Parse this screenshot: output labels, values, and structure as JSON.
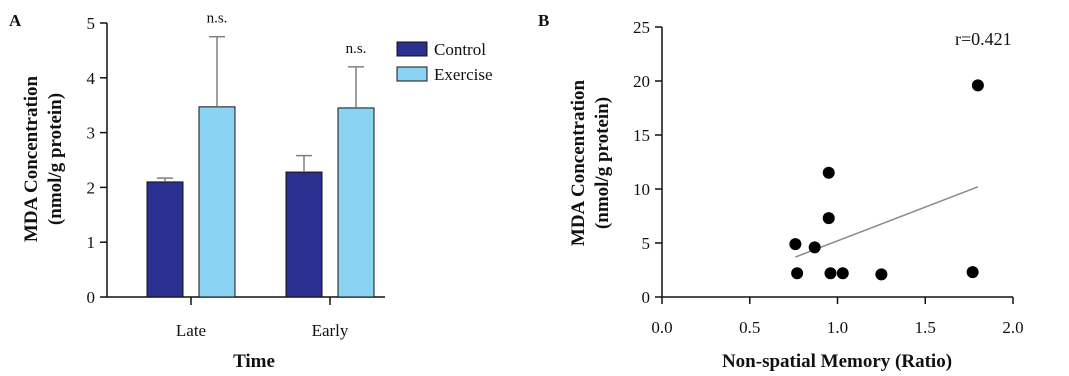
{
  "chart_data": [
    {
      "panel": "A",
      "type": "bar",
      "xlabel": "Time",
      "ylabel": "MDA Concentration",
      "ylabel2": "(nmol/g protein)",
      "categories": [
        "Late",
        "Early"
      ],
      "ylim": [
        0,
        5
      ],
      "yticks": [
        "0",
        "1",
        "2",
        "3",
        "4",
        "5"
      ],
      "series": [
        {
          "name": "Control",
          "color": "#2b2f8f",
          "values": [
            2.1,
            2.28
          ],
          "errors": [
            0.07,
            0.3
          ]
        },
        {
          "name": "Exercise",
          "color": "#8ad3f2",
          "values": [
            3.47,
            3.45
          ],
          "errors": [
            1.28,
            0.75
          ]
        }
      ],
      "annotations": [
        "n.s.",
        "n.s."
      ],
      "legend": "top-right"
    },
    {
      "panel": "B",
      "type": "scatter",
      "xlabel": "Non-spatial Memory (Ratio)",
      "ylabel": "MDA Concentration",
      "ylabel2": "(nmol/g protein)",
      "xlim": [
        0,
        2
      ],
      "ylim": [
        0,
        25
      ],
      "xticks": [
        "0.0",
        "0.5",
        "1.0",
        "1.5",
        "2.0"
      ],
      "yticks": [
        "0",
        "5",
        "10",
        "15",
        "20",
        "25"
      ],
      "points": [
        {
          "x": 0.76,
          "y": 4.9
        },
        {
          "x": 0.77,
          "y": 2.2
        },
        {
          "x": 0.87,
          "y": 4.6
        },
        {
          "x": 0.95,
          "y": 11.5
        },
        {
          "x": 0.95,
          "y": 7.3
        },
        {
          "x": 0.96,
          "y": 2.2
        },
        {
          "x": 1.03,
          "y": 2.2
        },
        {
          "x": 1.25,
          "y": 2.1
        },
        {
          "x": 1.77,
          "y": 2.3
        },
        {
          "x": 1.8,
          "y": 19.6
        }
      ],
      "fit": {
        "x": [
          0.76,
          1.8
        ],
        "y": [
          3.7,
          10.2
        ]
      },
      "annotation": "r=0.421"
    }
  ]
}
